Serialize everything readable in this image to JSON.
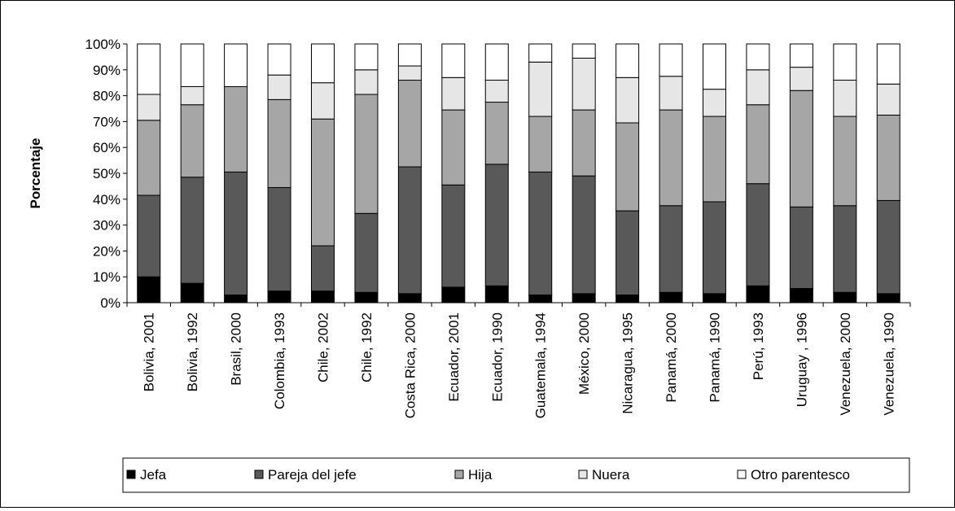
{
  "chart_data": {
    "type": "bar",
    "stacked": true,
    "ylabel": "Porcentaje",
    "xlabel": "",
    "ylim": [
      0,
      100
    ],
    "yticks": [
      "0%",
      "10%",
      "20%",
      "30%",
      "40%",
      "50%",
      "60%",
      "70%",
      "80%",
      "90%",
      "100%"
    ],
    "categories": [
      "Bolivia, 2001",
      "Bolivia, 1992",
      "Brasil, 2000",
      "Colombia, 1993",
      "Chile, 2002",
      "Chile, 1992",
      "Costa Rica, 2000",
      "Ecuador, 2001",
      "Ecuador, 1990",
      "Guatemala, 1994",
      "México, 2000",
      "Nicaragua, 1995",
      "Panamá, 2000",
      "Panamá, 1990",
      "Perú, 1993",
      "Uruguay , 1996",
      "Venezuela, 2000",
      "Venezuela, 1990"
    ],
    "series": [
      {
        "name": "Jefa",
        "color": "#000000",
        "values": [
          10,
          7.5,
          3,
          4.5,
          4.5,
          4,
          3.5,
          6,
          6.5,
          3,
          3.5,
          3,
          4,
          3.5,
          6.5,
          5.5,
          4,
          3.5
        ]
      },
      {
        "name": "Pareja del jefe",
        "color": "#595959",
        "values": [
          31.5,
          41,
          47.5,
          40,
          17.5,
          30.5,
          49,
          39.5,
          47,
          47.5,
          45.5,
          32.5,
          33.5,
          35.5,
          39.5,
          31.5,
          33.5,
          36
        ]
      },
      {
        "name": "Hija",
        "color": "#a6a6a6",
        "values": [
          29,
          28,
          33,
          34,
          49,
          46,
          33.5,
          29,
          24,
          21.5,
          25.5,
          34,
          37,
          33,
          30.5,
          45,
          34.5,
          33
        ]
      },
      {
        "name": "Nuera",
        "color": "#e6e6e6",
        "values": [
          10,
          7,
          0,
          9.5,
          14,
          9.5,
          5.5,
          12.5,
          8.5,
          21,
          20,
          17.5,
          13,
          10.5,
          13.5,
          9,
          14,
          12
        ]
      },
      {
        "name": "Otro parentesco",
        "color": "#ffffff",
        "values": [
          19.5,
          16.5,
          16.5,
          12,
          15,
          10,
          8.5,
          13,
          14,
          7,
          5.5,
          13,
          12.5,
          17.5,
          10,
          9,
          14,
          15.5
        ]
      }
    ],
    "legend_position": "bottom",
    "grid": false
  }
}
